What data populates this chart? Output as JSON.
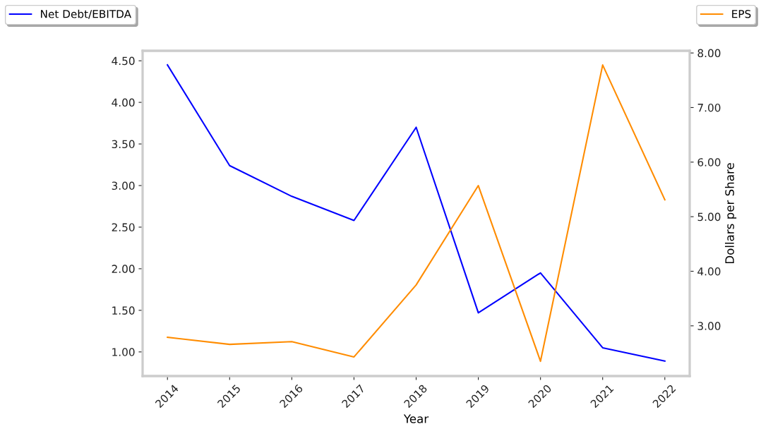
{
  "chart_data": {
    "type": "line",
    "xlabel": "Year",
    "y2label": "Dollars per Share",
    "categories": [
      "2014",
      "2015",
      "2016",
      "2017",
      "2018",
      "2019",
      "2020",
      "2021",
      "2022"
    ],
    "series": [
      {
        "name": "Net Debt/EBITDA",
        "color": "#0000ff",
        "values": [
          4.45,
          3.24,
          2.87,
          2.58,
          3.7,
          1.47,
          1.95,
          1.05,
          0.89
        ]
      },
      {
        "name": "EPS",
        "color": "#ff8c00",
        "axis": "y2",
        "values": [
          2.79,
          2.66,
          2.71,
          2.43,
          3.75,
          5.57,
          2.35,
          7.78,
          5.31
        ]
      }
    ],
    "ylim": [
      0.71,
      4.62
    ],
    "yticks": [
      {
        "value": 1,
        "label": "1.00"
      },
      {
        "value": 1.5,
        "label": "1.50"
      },
      {
        "value": 2,
        "label": "2.00"
      },
      {
        "value": 2.5,
        "label": "2.50"
      },
      {
        "value": 3,
        "label": "3.00"
      },
      {
        "value": 3.5,
        "label": "3.50"
      },
      {
        "value": 4,
        "label": "4.00"
      },
      {
        "value": 4.5,
        "label": "4.50"
      }
    ],
    "y2lim": [
      2.08,
      8.04
    ],
    "y2ticks": [
      {
        "value": 3,
        "label": "3.00"
      },
      {
        "value": 4,
        "label": "4.00"
      },
      {
        "value": 5,
        "label": "5.00"
      },
      {
        "value": 6,
        "label": "6.00"
      },
      {
        "value": 7,
        "label": "7.00"
      },
      {
        "value": 8,
        "label": "8.00"
      }
    ],
    "legend": "top",
    "grid": false,
    "line_style": "solid"
  }
}
